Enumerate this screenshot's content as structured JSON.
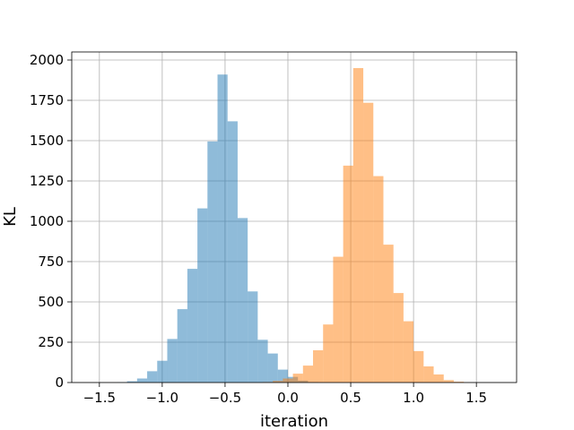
{
  "chart_data": {
    "type": "histogram",
    "title": "",
    "xlabel": "iteration",
    "ylabel": "KL",
    "xlim": [
      -1.72,
      1.82
    ],
    "ylim": [
      0,
      2050
    ],
    "xticks": [
      -1.5,
      -1.0,
      -0.5,
      0.0,
      0.5,
      1.0,
      1.5
    ],
    "xtick_labels": [
      "−1.5",
      "−1.0",
      "−0.5",
      "0.0",
      "0.5",
      "1.0",
      "1.5"
    ],
    "yticks": [
      0,
      250,
      500,
      750,
      1000,
      1250,
      1500,
      1750,
      2000
    ],
    "ytick_labels": [
      "0",
      "250",
      "500",
      "750",
      "1000",
      "1250",
      "1500",
      "1750",
      "2000"
    ],
    "grid": true,
    "legend": null,
    "series": [
      {
        "color": "#1f77b4",
        "alpha": 0.5,
        "bin_edges": [
          -1.36,
          -1.28,
          -1.2,
          -1.12,
          -1.04,
          -0.96,
          -0.88,
          -0.8,
          -0.72,
          -0.64,
          -0.56,
          -0.48,
          -0.4,
          -0.32,
          -0.24,
          -0.16,
          -0.08,
          0.0,
          0.08,
          0.16,
          0.24
        ],
        "counts": [
          2,
          8,
          25,
          70,
          135,
          270,
          455,
          705,
          1080,
          1495,
          1910,
          1620,
          1020,
          565,
          265,
          180,
          80,
          35,
          12,
          3
        ]
      },
      {
        "color": "#ff7f0e",
        "alpha": 0.5,
        "bin_edges": [
          -0.2,
          -0.12,
          -0.04,
          0.04,
          0.12,
          0.2,
          0.28,
          0.36,
          0.44,
          0.52,
          0.6,
          0.68,
          0.76,
          0.84,
          0.92,
          1.0,
          1.08,
          1.16,
          1.24,
          1.32,
          1.4
        ],
        "counts": [
          3,
          10,
          25,
          55,
          105,
          200,
          360,
          780,
          1345,
          1950,
          1735,
          1280,
          855,
          555,
          380,
          195,
          100,
          50,
          15,
          5
        ]
      }
    ]
  }
}
